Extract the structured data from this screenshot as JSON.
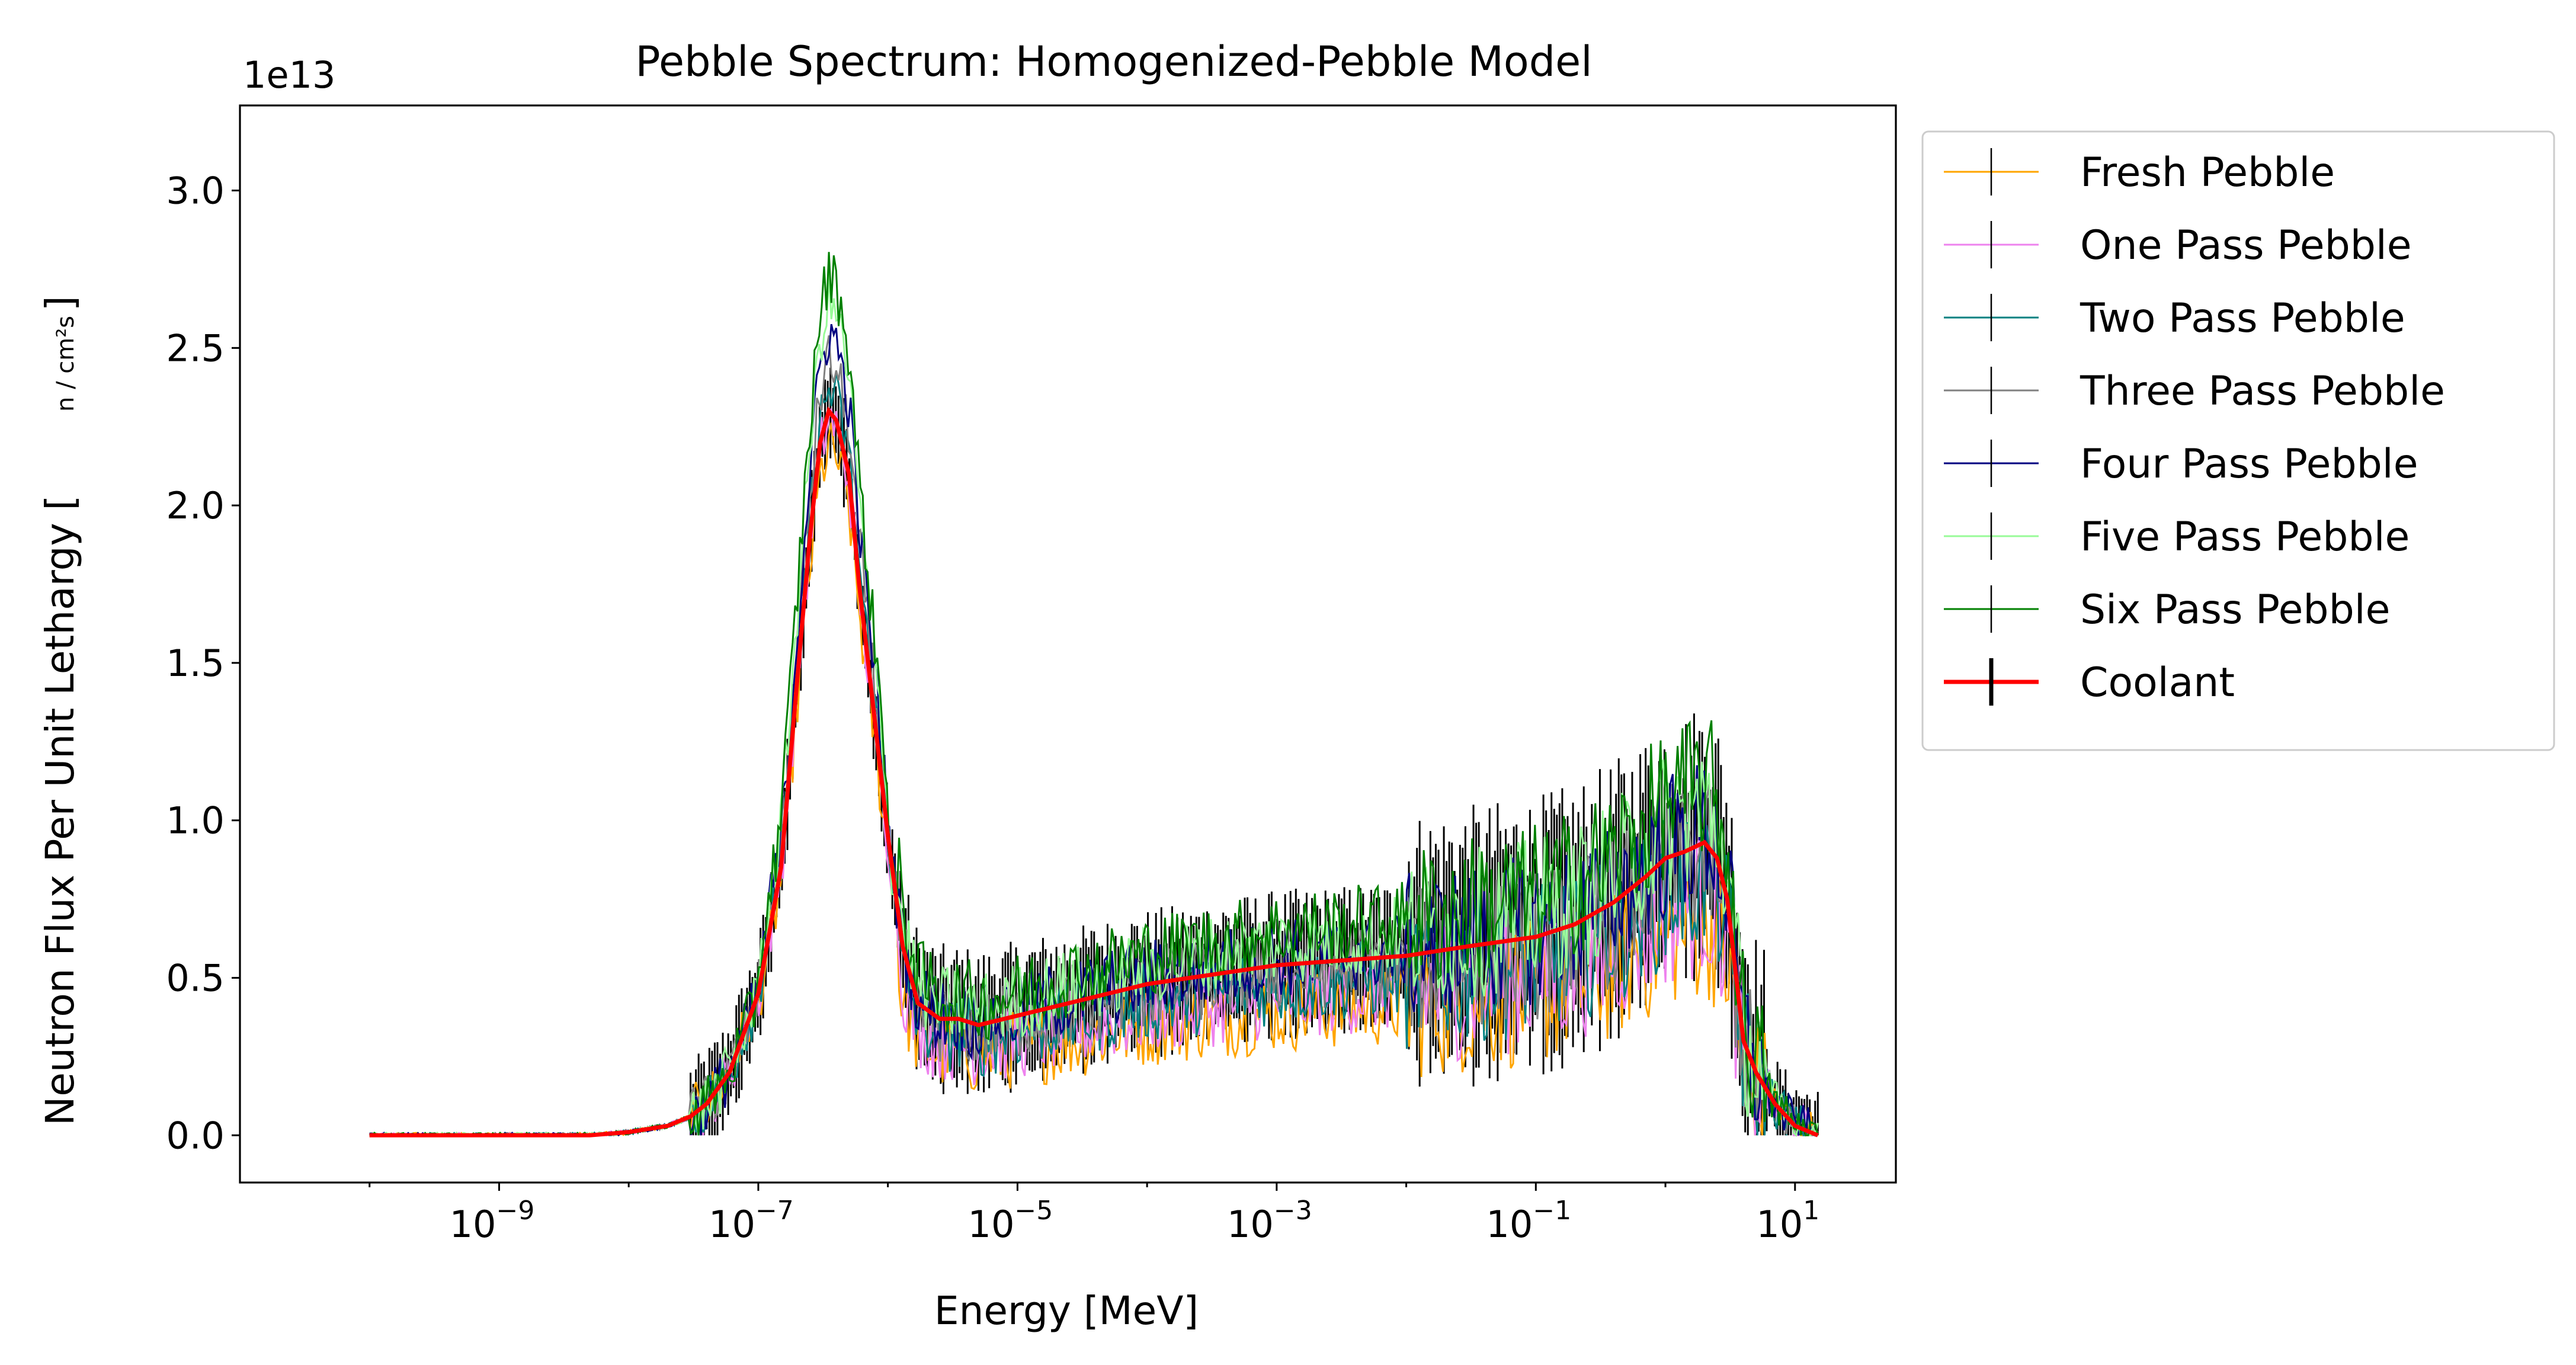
{
  "chart_data": {
    "type": "line",
    "title": "Pebble Spectrum: Homogenized-Pebble Model",
    "xlabel": "Energy [MeV]",
    "ylabel_main": "Neutron Flux Per Unit Lethargy [",
    "ylabel_unit": "n / cm²s",
    "ylabel_close": "]",
    "y_offset_label": "1e13",
    "x_scale": "log",
    "xlim": [
      1e-11,
      60
    ],
    "ylim": [
      -0.15,
      3.27
    ],
    "y_ticks": [
      "0.0",
      "0.5",
      "1.0",
      "1.5",
      "2.0",
      "2.5",
      "3.0"
    ],
    "x_ticks": [
      {
        "value": 1e-09,
        "base": "10",
        "exp": "−9"
      },
      {
        "value": 1e-07,
        "base": "10",
        "exp": "−7"
      },
      {
        "value": 1e-05,
        "base": "10",
        "exp": "−5"
      },
      {
        "value": 0.001,
        "base": "10",
        "exp": "−3"
      },
      {
        "value": 0.1,
        "base": "10",
        "exp": "−1"
      },
      {
        "value": 10,
        "base": "10",
        "exp": "1"
      }
    ],
    "grid": false,
    "legend_position": "outside-right",
    "coolant": {
      "name": "Coolant",
      "color": "#ff0000",
      "x": [
        1e-10,
        1e-09,
        5e-09,
        1e-08,
        2e-08,
        3e-08,
        4e-08,
        6e-08,
        1e-07,
        1.5e-07,
        2e-07,
        2.5e-07,
        3e-07,
        3.5e-07,
        4e-07,
        5e-07,
        6e-07,
        8e-07,
        1e-06,
        1.3e-06,
        1.7e-06,
        2.5e-06,
        3.5e-06,
        5e-06,
        1e-05,
        0.0001,
        0.001,
        0.01,
        0.03,
        0.1,
        0.2,
        0.4,
        0.7,
        1.0,
        1.4,
        2.0,
        2.5,
        3.0,
        4.0,
        5.0,
        7.0,
        10,
        15
      ],
      "y": [
        0.0,
        0.0,
        0.0,
        0.01,
        0.03,
        0.06,
        0.1,
        0.2,
        0.45,
        0.85,
        1.45,
        1.9,
        2.2,
        2.3,
        2.27,
        2.1,
        1.75,
        1.3,
        0.95,
        0.6,
        0.42,
        0.37,
        0.37,
        0.35,
        0.38,
        0.48,
        0.54,
        0.57,
        0.6,
        0.63,
        0.67,
        0.74,
        0.82,
        0.88,
        0.9,
        0.93,
        0.88,
        0.75,
        0.3,
        0.2,
        0.1,
        0.03,
        0.0
      ]
    },
    "series": [
      {
        "name": "Fresh Pebble",
        "color": "#ffa500"
      },
      {
        "name": "One Pass Pebble",
        "color": "#ee82ee"
      },
      {
        "name": "Two Pass Pebble",
        "color": "#008080"
      },
      {
        "name": "Three Pass Pebble",
        "color": "#808080"
      },
      {
        "name": "Four Pass Pebble",
        "color": "#000080"
      },
      {
        "name": "Five Pass Pebble",
        "color": "#98fb98"
      },
      {
        "name": "Six Pass Pebble",
        "color": "#008000"
      }
    ],
    "errorbar_color": "#000000"
  }
}
